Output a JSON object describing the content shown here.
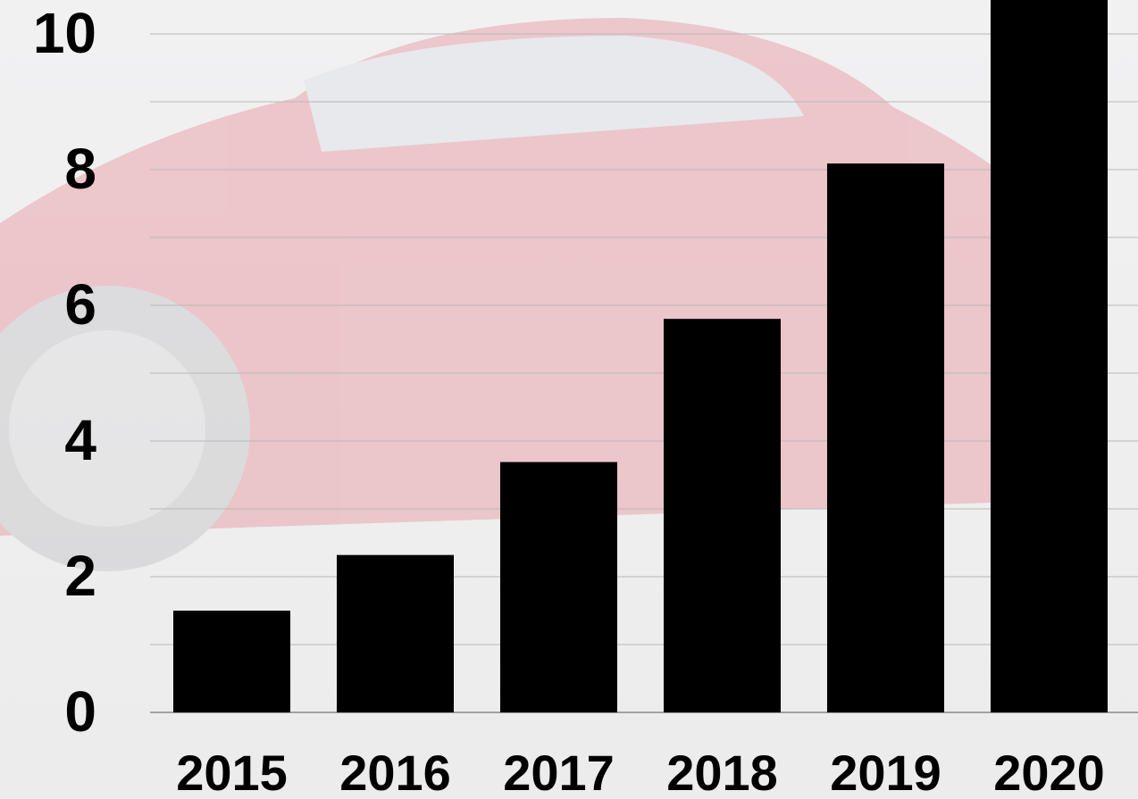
{
  "chart_data": {
    "type": "bar",
    "categories": [
      "2015",
      "2016",
      "2017",
      "2018",
      "2019",
      "2020"
    ],
    "values": [
      1.5,
      2.32,
      3.69,
      5.8,
      8.09,
      10.5
    ],
    "color": "#000000",
    "ylim": [
      0,
      10.5
    ],
    "yticks": [
      0,
      2,
      4,
      6,
      8,
      10
    ],
    "minor_yticks": [
      1,
      3,
      5,
      7,
      9
    ],
    "grid": true
  }
}
